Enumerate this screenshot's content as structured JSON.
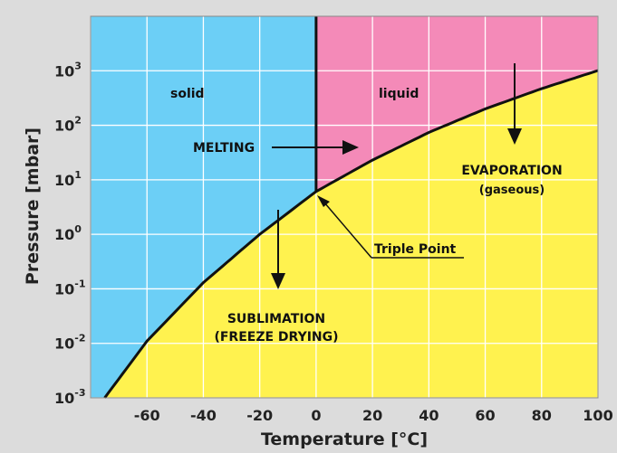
{
  "chart_data": {
    "type": "area",
    "title": "",
    "xlabel": "Temperature [°C]",
    "ylabel": "Pressure [mbar]",
    "xlim": [
      -80,
      100
    ],
    "ylim": [
      0.001,
      10000
    ],
    "yscale": "log",
    "grid": true,
    "x_ticks": [
      "-60",
      "-40",
      "-20",
      "0",
      "20",
      "40",
      "60",
      "80",
      "100"
    ],
    "y_ticks": [
      {
        "base": "10",
        "exp": "3"
      },
      {
        "base": "10",
        "exp": "2"
      },
      {
        "base": "10",
        "exp": "1"
      },
      {
        "base": "10",
        "exp": "0"
      },
      {
        "base": "10",
        "exp": "-1"
      },
      {
        "base": "10",
        "exp": "-2"
      },
      {
        "base": "10",
        "exp": "-3"
      }
    ],
    "regions": [
      {
        "label": "solid",
        "color": "#6ccff6"
      },
      {
        "label": "liquid",
        "color": "#f48ab8"
      },
      {
        "label": "gaseous",
        "color": "#fff24f"
      }
    ],
    "curve": {
      "x": [
        -75,
        -60,
        -40,
        -20,
        0,
        20,
        40,
        60,
        80,
        100
      ],
      "y": [
        0.001,
        0.011,
        0.13,
        1.0,
        6.1,
        23,
        74,
        200,
        470,
        1010
      ]
    },
    "melting_line_x": 0,
    "annotations": {
      "solid": "solid",
      "liquid": "liquid",
      "melting": "MELTING",
      "evaporation": "EVAPORATION",
      "evaporation_sub": "(gaseous)",
      "triple_point": "Triple Point",
      "sublimation": "SUBLIMATION",
      "sublimation_sub": "(FREEZE DRYING)"
    },
    "colors": {
      "grid": "#ffffff",
      "curve": "#111111",
      "background": "#dcdcdc"
    }
  }
}
